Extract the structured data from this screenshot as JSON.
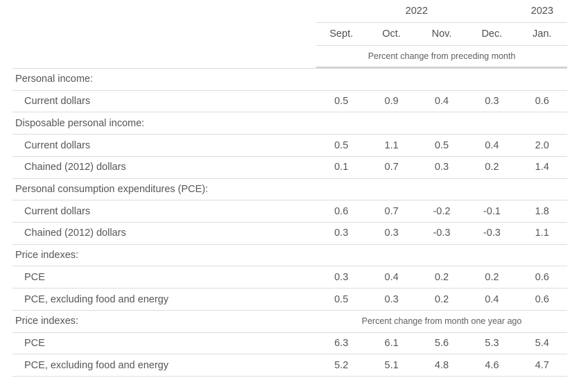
{
  "table": {
    "year_groups": [
      {
        "label": "2022",
        "span": 4
      },
      {
        "label": "2023",
        "span": 1
      }
    ],
    "columns": [
      "Sept.",
      "Oct.",
      "Nov.",
      "Dec.",
      "Jan."
    ],
    "unit_note_top": "Percent change from preceding month",
    "rows": [
      {
        "type": "section",
        "label": "Personal income:"
      },
      {
        "type": "data",
        "label": "Current dollars",
        "values": [
          "0.5",
          "0.9",
          "0.4",
          "0.3",
          "0.6"
        ]
      },
      {
        "type": "section",
        "label": "Disposable personal income:"
      },
      {
        "type": "data",
        "label": "Current dollars",
        "values": [
          "0.5",
          "1.1",
          "0.5",
          "0.4",
          "2.0"
        ]
      },
      {
        "type": "data",
        "label": "Chained (2012) dollars",
        "values": [
          "0.1",
          "0.7",
          "0.3",
          "0.2",
          "1.4"
        ]
      },
      {
        "type": "section",
        "label": "Personal consumption expenditures (PCE):"
      },
      {
        "type": "data",
        "label": "Current dollars",
        "values": [
          "0.6",
          "0.7",
          "-0.2",
          "-0.1",
          "1.8"
        ]
      },
      {
        "type": "data",
        "label": "Chained (2012) dollars",
        "values": [
          "0.3",
          "0.3",
          "-0.3",
          "-0.3",
          "1.1"
        ]
      },
      {
        "type": "section",
        "label": "Price indexes:"
      },
      {
        "type": "data",
        "label": "PCE",
        "values": [
          "0.3",
          "0.4",
          "0.2",
          "0.2",
          "0.6"
        ]
      },
      {
        "type": "data",
        "label": "PCE, excluding food and energy",
        "values": [
          "0.5",
          "0.3",
          "0.2",
          "0.4",
          "0.6"
        ]
      },
      {
        "type": "section",
        "label": "Price indexes:",
        "note": "Percent change from month one year ago"
      },
      {
        "type": "data",
        "label": "PCE",
        "values": [
          "6.3",
          "6.1",
          "5.6",
          "5.3",
          "5.4"
        ]
      },
      {
        "type": "data",
        "label": "PCE, excluding food and energy",
        "values": [
          "5.2",
          "5.1",
          "4.8",
          "4.6",
          "4.7"
        ]
      }
    ]
  },
  "colors": {
    "text": "#55565a",
    "header_text": "#4e4f52",
    "subtitle_text": "#5f6062",
    "border_thin": "#dcdcdc",
    "border_thick": "#d2d2d2",
    "background": "#ffffff"
  },
  "chart_data": {
    "type": "table",
    "title": "",
    "column_group_labels": [
      "2022",
      "2023"
    ],
    "columns": [
      "Sept. 2022",
      "Oct. 2022",
      "Nov. 2022",
      "Dec. 2022",
      "Jan. 2023"
    ],
    "sections": [
      {
        "units": "Percent change from preceding month",
        "rows": [
          {
            "section": "Personal income:",
            "label": "Current dollars",
            "values": [
              0.5,
              0.9,
              0.4,
              0.3,
              0.6
            ]
          },
          {
            "section": "Disposable personal income:",
            "label": "Current dollars",
            "values": [
              0.5,
              1.1,
              0.5,
              0.4,
              2.0
            ]
          },
          {
            "section": "Disposable personal income:",
            "label": "Chained (2012) dollars",
            "values": [
              0.1,
              0.7,
              0.3,
              0.2,
              1.4
            ]
          },
          {
            "section": "Personal consumption expenditures (PCE):",
            "label": "Current dollars",
            "values": [
              0.6,
              0.7,
              -0.2,
              -0.1,
              1.8
            ]
          },
          {
            "section": "Personal consumption expenditures (PCE):",
            "label": "Chained (2012) dollars",
            "values": [
              0.3,
              0.3,
              -0.3,
              -0.3,
              1.1
            ]
          },
          {
            "section": "Price indexes:",
            "label": "PCE",
            "values": [
              0.3,
              0.4,
              0.2,
              0.2,
              0.6
            ]
          },
          {
            "section": "Price indexes:",
            "label": "PCE, excluding food and energy",
            "values": [
              0.5,
              0.3,
              0.2,
              0.4,
              0.6
            ]
          }
        ]
      },
      {
        "units": "Percent change from month one year ago",
        "rows": [
          {
            "section": "Price indexes:",
            "label": "PCE",
            "values": [
              6.3,
              6.1,
              5.6,
              5.3,
              5.4
            ]
          },
          {
            "section": "Price indexes:",
            "label": "PCE, excluding food and energy",
            "values": [
              5.2,
              5.1,
              4.8,
              4.6,
              4.7
            ]
          }
        ]
      }
    ]
  }
}
